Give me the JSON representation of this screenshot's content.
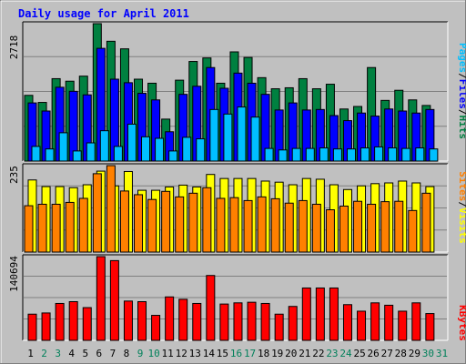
{
  "chart_data": [
    {
      "type": "bar",
      "panel": "pages-files-hits",
      "title": "Daily usage for April 2011",
      "ymax_label": "2718",
      "ylim": [
        0,
        2718
      ],
      "grid": true,
      "categories": [
        "1",
        "2",
        "3",
        "4",
        "5",
        "6",
        "7",
        "8",
        "9",
        "10",
        "11",
        "12",
        "13",
        "14",
        "15",
        "16",
        "17",
        "18",
        "19",
        "20",
        "21",
        "22",
        "23",
        "24",
        "25",
        "26",
        "27",
        "28",
        "29",
        "30",
        "31"
      ],
      "series": [
        {
          "name": "Hits",
          "color": "#008040",
          "values": [
            1300,
            1160,
            1630,
            1580,
            1680,
            2718,
            2370,
            2220,
            1620,
            1540,
            830,
            1600,
            1970,
            2040,
            1540,
            2160,
            2050,
            1650,
            1430,
            1450,
            1630,
            1430,
            1520,
            1030,
            1080,
            1850,
            1200,
            1400,
            1210,
            1100,
            0
          ]
        },
        {
          "name": "Files",
          "color": "#0000ff",
          "values": [
            1150,
            990,
            1460,
            1380,
            1310,
            2230,
            1620,
            1550,
            1340,
            1210,
            580,
            1320,
            1480,
            1850,
            1440,
            1740,
            1540,
            1320,
            1010,
            1150,
            1010,
            1020,
            900,
            800,
            950,
            890,
            1030,
            990,
            950,
            1020,
            0
          ]
        },
        {
          "name": "Pages",
          "color": "#00bfff",
          "values": [
            290,
            240,
            560,
            200,
            360,
            600,
            290,
            730,
            480,
            450,
            200,
            470,
            440,
            1020,
            930,
            1070,
            870,
            250,
            220,
            250,
            250,
            260,
            240,
            240,
            260,
            280,
            260,
            250,
            260,
            240,
            0
          ]
        }
      ],
      "legend": [
        "Pages",
        "/",
        "Files",
        "/",
        "Hits"
      ]
    },
    {
      "type": "bar",
      "panel": "sites-visits",
      "ymax_label": "235",
      "ylim": [
        0,
        235
      ],
      "grid": true,
      "series": [
        {
          "name": "Visits",
          "color": "#ffff00",
          "values": [
            196,
            178,
            178,
            175,
            183,
            220,
            180,
            219,
            168,
            168,
            177,
            182,
            177,
            211,
            200,
            200,
            200,
            193,
            190,
            183,
            200,
            198,
            183,
            170,
            180,
            186,
            188,
            193,
            188,
            178,
            0
          ]
        },
        {
          "name": "Sites",
          "color": "#ff8000",
          "values": [
            126,
            130,
            130,
            135,
            146,
            213,
            235,
            166,
            156,
            143,
            165,
            150,
            160,
            175,
            146,
            148,
            140,
            150,
            145,
            133,
            140,
            130,
            115,
            125,
            138,
            130,
            137,
            138,
            113,
            160,
            0
          ]
        }
      ],
      "legend": [
        "Sites",
        "/",
        "Visits"
      ]
    },
    {
      "type": "bar",
      "panel": "kbytes",
      "ymax_label": "140694",
      "ylim": [
        0,
        140694
      ],
      "grid": true,
      "series": [
        {
          "name": "KBytes",
          "color": "#ff0000",
          "values": [
            44000,
            46000,
            62000,
            65000,
            55000,
            140694,
            134000,
            66000,
            65000,
            42000,
            73000,
            69000,
            62000,
            109000,
            61000,
            63000,
            64000,
            62000,
            44000,
            57000,
            88000,
            88000,
            88000,
            60000,
            49000,
            63000,
            59000,
            49000,
            63000,
            45000,
            0
          ]
        }
      ],
      "legend": [
        "KBytes"
      ]
    }
  ],
  "colors": {
    "background": "#c0c0c0",
    "title": "#0000ff",
    "day_weekday": "#000000",
    "day_weekend": "#00805a",
    "outline": "#000000"
  },
  "weekend_days": [
    "2",
    "3",
    "9",
    "10",
    "16",
    "17",
    "23",
    "24",
    "30",
    "31"
  ]
}
